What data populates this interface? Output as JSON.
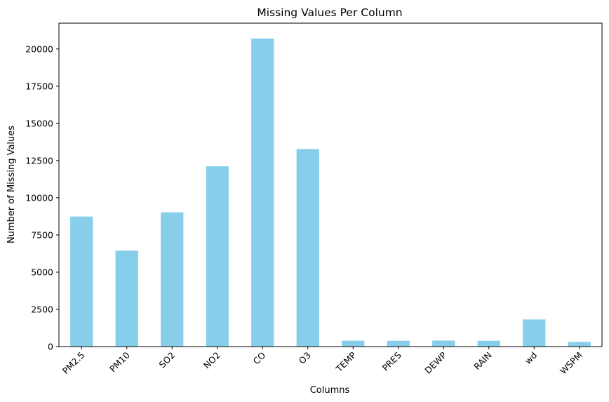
{
  "chart_data": {
    "type": "bar",
    "title": "Missing Values Per Column",
    "xlabel": "Columns",
    "ylabel": "Number of Missing Values",
    "categories": [
      "PM2.5",
      "PM10",
      "SO2",
      "NO2",
      "CO",
      "O3",
      "TEMP",
      "PRES",
      "DEWP",
      "RAIN",
      "wd",
      "WSPM"
    ],
    "values": [
      8739,
      6449,
      9021,
      12116,
      20701,
      13277,
      398,
      393,
      403,
      390,
      1822,
      318
    ],
    "ylim": [
      0,
      21736
    ],
    "yticks": [
      0,
      2500,
      5000,
      7500,
      10000,
      12500,
      15000,
      17500,
      20000
    ],
    "bar_color": "#87ceeb",
    "grid": false,
    "legend": false
  }
}
